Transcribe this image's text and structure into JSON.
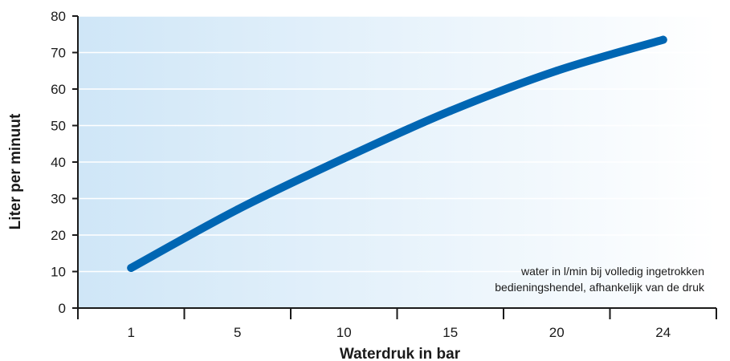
{
  "chart_data": {
    "type": "line",
    "title": "",
    "xlabel": "Waterdruk in bar",
    "ylabel": "Liter per minuut",
    "categories": [
      "1",
      "5",
      "10",
      "15",
      "20",
      "24"
    ],
    "ylim": [
      0,
      80
    ],
    "yticks": [
      "0",
      "10",
      "20",
      "30",
      "40",
      "50",
      "60",
      "70",
      "80"
    ],
    "grid": true,
    "series": [
      {
        "values": [
          11,
          27,
          41,
          54,
          65,
          73.5
        ]
      }
    ],
    "annotation": {
      "line1": "water in l/min bij volledig ingetrokken",
      "line2": "bedieningshendel, afhankelijk van de druk"
    },
    "colors": {
      "line": "#0066b3",
      "background_left": "#cfe6f7",
      "background_right": "#ffffff",
      "grid": "#ffffff",
      "axis": "#1a1a1a"
    }
  }
}
